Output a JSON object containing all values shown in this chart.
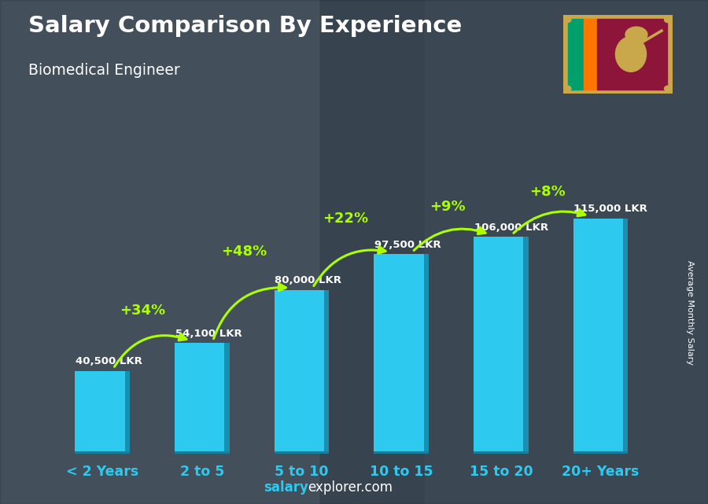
{
  "title": "Salary Comparison By Experience",
  "subtitle": "Biomedical Engineer",
  "categories": [
    "< 2 Years",
    "2 to 5",
    "5 to 10",
    "10 to 15",
    "15 to 20",
    "20+ Years"
  ],
  "values": [
    40500,
    54100,
    80000,
    97500,
    106000,
    115000
  ],
  "labels": [
    "40,500 LKR",
    "54,100 LKR",
    "80,000 LKR",
    "97,500 LKR",
    "106,000 LKR",
    "115,000 LKR"
  ],
  "pct_changes": [
    "+34%",
    "+48%",
    "+22%",
    "+9%",
    "+8%"
  ],
  "bar_color_face": "#2EC9EE",
  "bar_color_dark": "#1A8FB0",
  "bar_color_bottom": "#1580A0",
  "bg_color": "#4a5568",
  "title_color": "#ffffff",
  "label_color": "#ffffff",
  "pct_color": "#aaff00",
  "xtick_color": "#2EC9EE",
  "ylabel_text": "Average Monthly Salary",
  "footer_salary_color": "#2EC9EE",
  "footer_rest_color": "#ffffff",
  "ylim_max": 138000,
  "flag_border": "#c8a84b",
  "flag_green": "#009f6b",
  "flag_orange": "#ff7700",
  "flag_maroon": "#8d153a",
  "flag_lion": "#c8a84b"
}
